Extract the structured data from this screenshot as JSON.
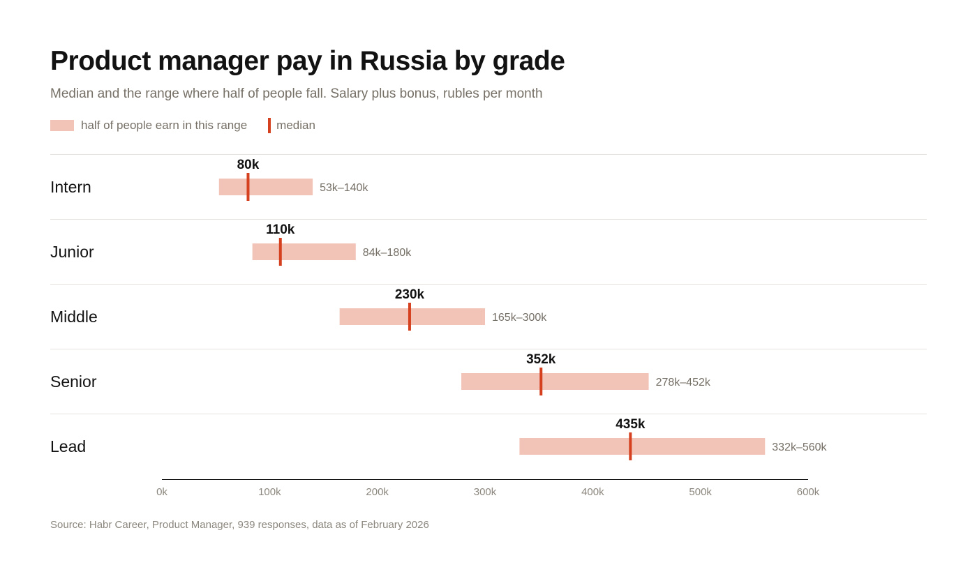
{
  "title": "Product manager pay in Russia by grade",
  "subtitle": "Median and the range where half of people fall. Salary plus bonus, rubles per month",
  "legend": {
    "range_label": "half of people earn in this range",
    "median_label": "median"
  },
  "source": "Source: Habr Career, Product Manager, 939 responses, data as of February 2026",
  "colors": {
    "range": "#f2c4b8",
    "median": "#d5401f",
    "title": "#121212",
    "muted": "#756f66",
    "gridline": "#e6e3de",
    "axis": "#121212"
  },
  "chart_data": {
    "type": "range-dot",
    "xlim": [
      0,
      600
    ],
    "x_unit": "thousand rubles per month",
    "ticks": [
      0,
      100,
      200,
      300,
      400,
      500,
      600
    ],
    "tick_labels": [
      "0k",
      "100k",
      "200k",
      "300k",
      "400k",
      "500k",
      "600k"
    ],
    "series": [
      {
        "grade": "Intern",
        "low": 53,
        "median": 80,
        "high": 140,
        "median_label": "80k",
        "range_label": "53k–140k"
      },
      {
        "grade": "Junior",
        "low": 84,
        "median": 110,
        "high": 180,
        "median_label": "110k",
        "range_label": "84k–180k"
      },
      {
        "grade": "Middle",
        "low": 165,
        "median": 230,
        "high": 300,
        "median_label": "230k",
        "range_label": "165k–300k"
      },
      {
        "grade": "Senior",
        "low": 278,
        "median": 352,
        "high": 452,
        "median_label": "352k",
        "range_label": "278k–452k"
      },
      {
        "grade": "Lead",
        "low": 332,
        "median": 435,
        "high": 560,
        "median_label": "435k",
        "range_label": "332k–560k"
      }
    ]
  }
}
